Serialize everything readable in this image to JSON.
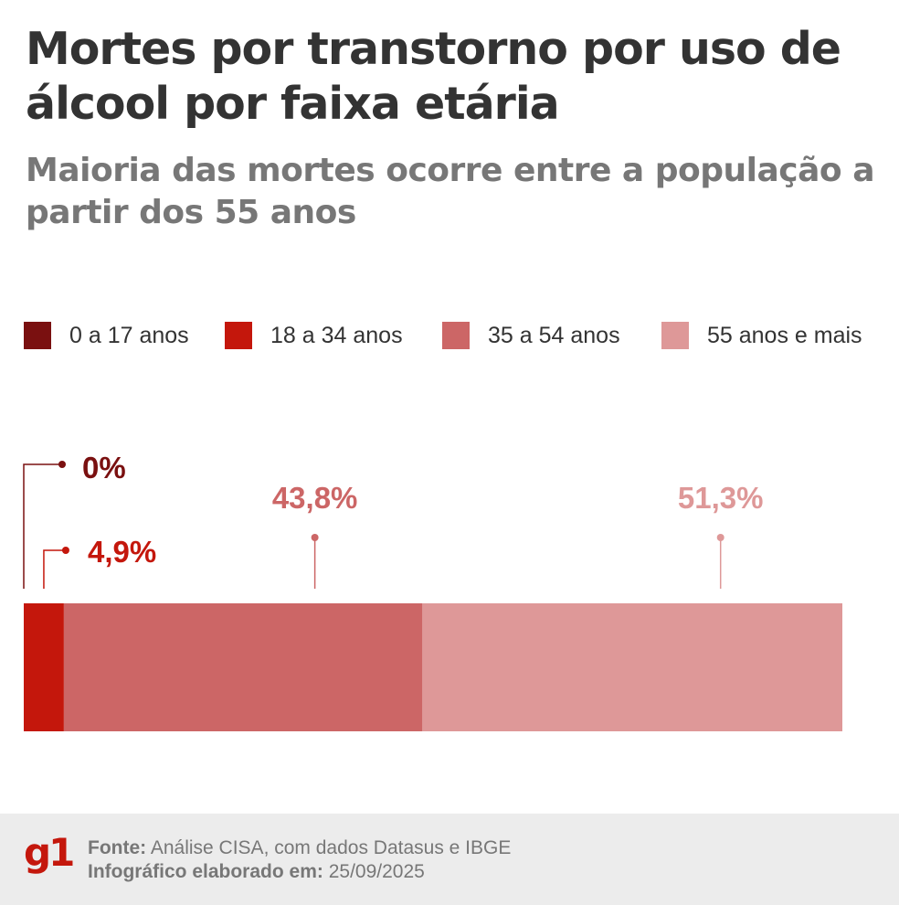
{
  "header": {
    "title": "Mortes por transtorno por uso de álcool por faixa etária",
    "subtitle": "Maioria das mortes ocorre entre a população a partir dos 55 anos"
  },
  "legend": [
    {
      "label": "0 a 17 anos",
      "color": "#7a1010"
    },
    {
      "label": "18 a 34 anos",
      "color": "#c4170c"
    },
    {
      "label": "35 a 54 anos",
      "color": "#cc6666"
    },
    {
      "label": "55 anos e mais",
      "color": "#de9898"
    }
  ],
  "chart_data": {
    "type": "bar",
    "orientation": "horizontal-stacked",
    "categories": [
      "0 a 17 anos",
      "18 a 34 anos",
      "35 a 54 anos",
      "55 anos e mais"
    ],
    "values": [
      0,
      4.9,
      43.8,
      51.3
    ],
    "data_labels": [
      "0%",
      "4,9%",
      "43,8%",
      "51,3%"
    ],
    "colors": [
      "#7a1010",
      "#c4170c",
      "#cc6666",
      "#de9898"
    ],
    "label_colors": [
      "#7a1010",
      "#c4170c",
      "#cc6666",
      "#de9898"
    ],
    "xlim": [
      0,
      100
    ]
  },
  "footer": {
    "logo": "g1",
    "source_label": "Fonte:",
    "source_text": "Análise CISA, com dados Datasus e IBGE",
    "date_label": "Infográfico elaborado em:",
    "date_text": "25/09/2025"
  }
}
